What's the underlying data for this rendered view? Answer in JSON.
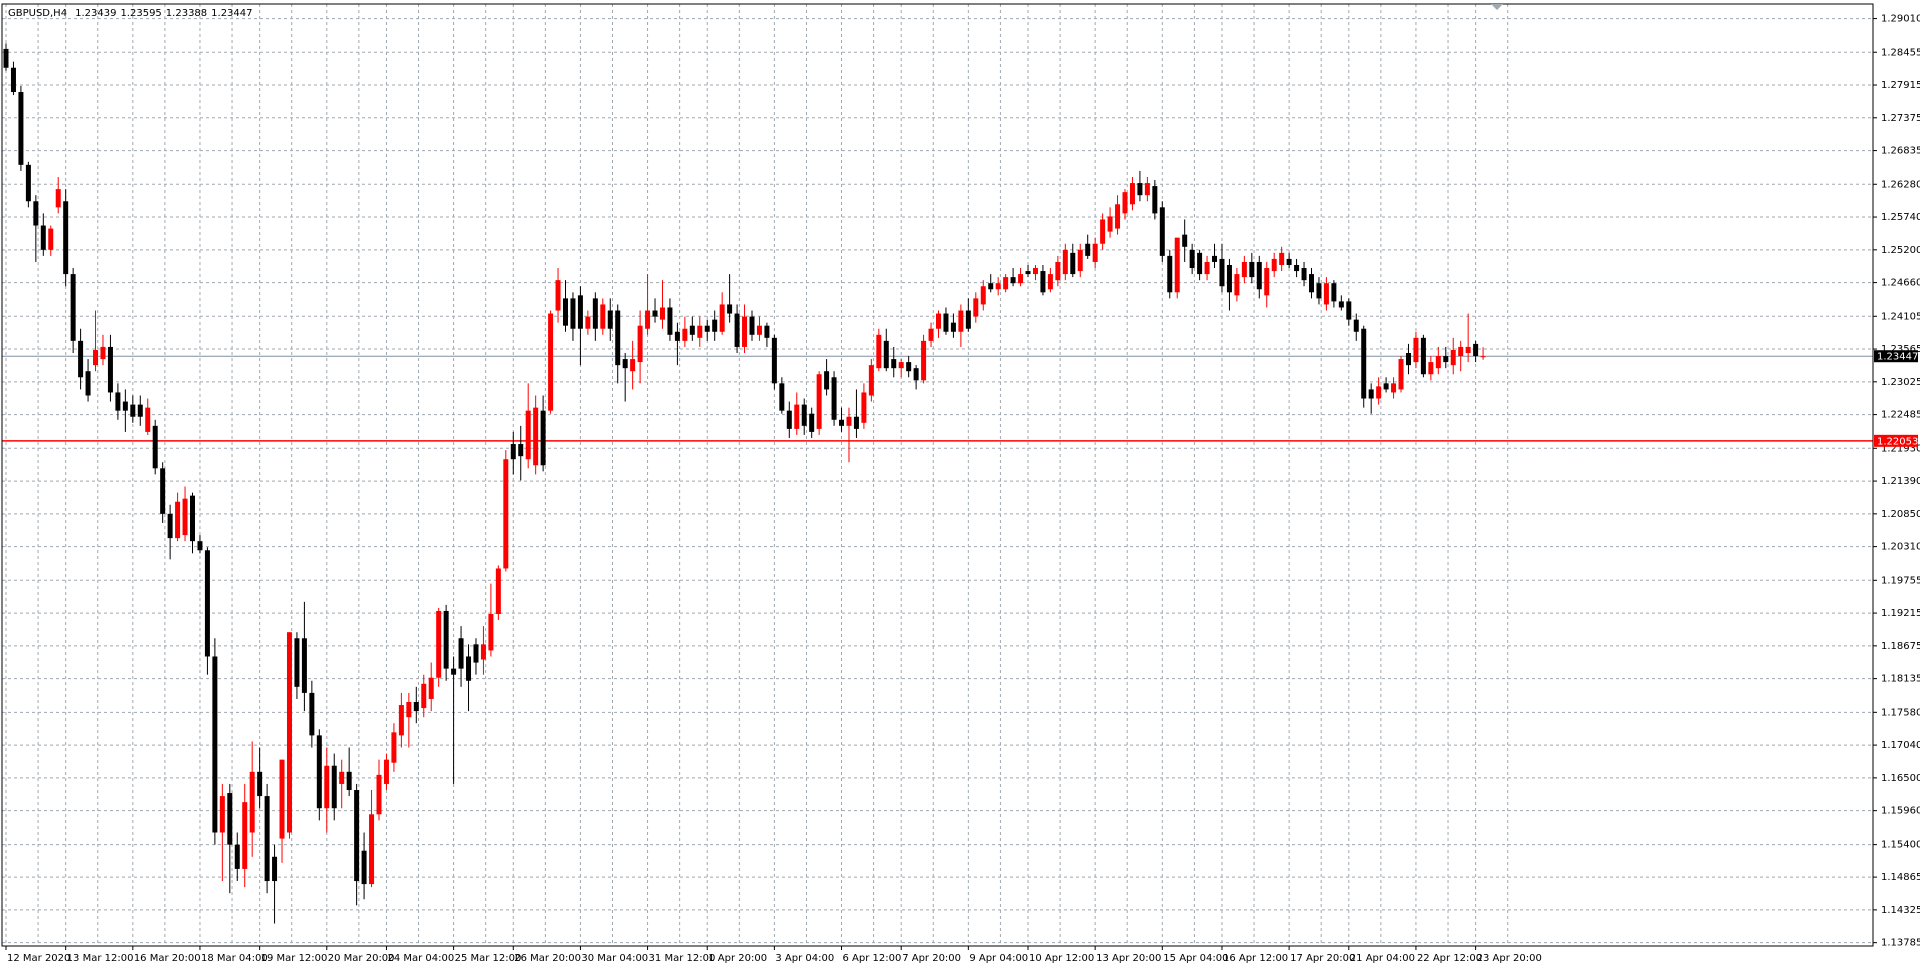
{
  "chart_data": {
    "type": "candlestick",
    "title": "GBPUSD,H4",
    "bull_color": "#ff0000",
    "bear_color": "#000000",
    "grid": true,
    "grid_color": "#a0a8b0",
    "ylim": [
      1.1373,
      1.2925
    ],
    "yticks": [
      {
        "value": 1.2901,
        "label": "1.29010"
      },
      1.28455,
      1.27915,
      1.27375,
      1.26835,
      {
        "value": 1.2628,
        "label": "1.26280"
      },
      {
        "value": 1.2574,
        "label": "1.25740"
      },
      {
        "value": 1.252,
        "label": "1.25200"
      },
      {
        "value": 1.2466,
        "label": "1.24660"
      },
      1.24105,
      1.23565,
      1.23025,
      1.22485,
      {
        "value": 1.2193,
        "label": "1.21930"
      },
      {
        "value": 1.2139,
        "label": "1.21390"
      },
      {
        "value": 1.2085,
        "label": "1.20850"
      },
      {
        "value": 1.2031,
        "label": "1.20310"
      },
      1.19755,
      1.19215,
      1.18675,
      1.18135,
      {
        "value": 1.1758,
        "label": "1.17580"
      },
      {
        "value": 1.1704,
        "label": "1.17040"
      },
      {
        "value": 1.165,
        "label": "1.16500"
      },
      {
        "value": 1.1596,
        "label": "1.15960"
      },
      {
        "value": 1.154,
        "label": "1.15400"
      },
      1.14865,
      1.14325,
      1.13785
    ],
    "hline": {
      "value": 1.22053,
      "color": "#ff0000"
    },
    "categories": [
      "12 Mar 2020",
      null,
      null,
      null,
      null,
      null,
      null,
      null,
      "13 Mar 12:00",
      null,
      null,
      null,
      null,
      null,
      null,
      null,
      null,
      "16 Mar 20:00",
      null,
      null,
      null,
      null,
      null,
      null,
      null,
      null,
      "18 Mar 04:00",
      null,
      null,
      null,
      null,
      null,
      null,
      null,
      "19 Mar 12:00",
      null,
      null,
      null,
      null,
      null,
      null,
      null,
      null,
      "20 Mar 20:00",
      null,
      null,
      null,
      null,
      null,
      null,
      null,
      "24 Mar 04:00",
      null,
      null,
      null,
      null,
      null,
      null,
      null,
      null,
      "25 Mar 12:00",
      null,
      null,
      null,
      null,
      null,
      null,
      null,
      "26 Mar 20:00",
      null,
      null,
      null,
      null,
      null,
      null,
      null,
      null,
      "30 Mar 04:00",
      null,
      null,
      null,
      null,
      null,
      null,
      null,
      null,
      "31 Mar 12:00",
      null,
      null,
      null,
      null,
      null,
      null,
      null,
      "1 Apr 20:00",
      null,
      null,
      null,
      null,
      null,
      null,
      null,
      null,
      "3 Apr 04:00",
      null,
      null,
      null,
      null,
      null,
      null,
      null,
      null,
      "6 Apr 12:00",
      null,
      null,
      null,
      null,
      null,
      null,
      null,
      "7 Apr 20:00",
      null,
      null,
      null,
      null,
      null,
      null,
      null,
      null,
      "9 Apr 04:00",
      null,
      null,
      null,
      null,
      null,
      null,
      null,
      "10 Apr 12:00",
      null,
      null,
      null,
      null,
      null,
      null,
      null,
      null,
      "13 Apr 20:00",
      null,
      null,
      null,
      null,
      null,
      null,
      null,
      null,
      "15 Apr 04:00",
      null,
      null,
      null,
      null,
      null,
      null,
      null,
      "16 Apr 12:00",
      null,
      null,
      null,
      null,
      null,
      null,
      null,
      null,
      "17 Apr 20:00",
      null,
      null,
      null,
      null,
      null,
      null,
      null,
      "21 Apr 04:00",
      null,
      null,
      null,
      null,
      null,
      null,
      null,
      null,
      "22 Apr 12:00",
      null,
      null,
      null,
      null,
      null,
      null,
      null,
      "23 Apr 20:00",
      null
    ],
    "values": [
      [
        1.2851,
        1.286,
        1.2815,
        1.282
      ],
      [
        1.282,
        1.283,
        1.2775,
        1.278
      ],
      [
        1.278,
        1.279,
        1.265,
        1.266
      ],
      [
        1.266,
        1.2665,
        1.259,
        1.26
      ],
      [
        1.26,
        1.261,
        1.25,
        1.256
      ],
      [
        1.256,
        1.258,
        1.251,
        1.252
      ],
      [
        1.252,
        1.256,
        1.251,
        1.2555
      ],
      [
        1.259,
        1.264,
        1.258,
        1.262
      ],
      [
        1.26,
        1.262,
        1.246,
        1.248
      ],
      [
        1.248,
        1.249,
        1.235,
        1.237
      ],
      [
        1.237,
        1.239,
        1.229,
        1.231
      ],
      [
        1.232,
        1.234,
        1.227,
        1.228
      ],
      [
        1.233,
        1.242,
        1.232,
        1.2355
      ],
      [
        1.234,
        1.238,
        1.233,
        1.236
      ],
      [
        1.236,
        1.238,
        1.227,
        1.2285
      ],
      [
        1.2285,
        1.23,
        1.224,
        1.2255
      ],
      [
        1.227,
        1.229,
        1.222,
        1.2255
      ],
      [
        1.2265,
        1.228,
        1.2235,
        1.2245
      ],
      [
        1.2265,
        1.228,
        1.223,
        1.2245
      ],
      [
        1.222,
        1.2275,
        1.2215,
        1.226
      ],
      [
        1.223,
        1.224,
        1.215,
        1.216
      ],
      [
        1.216,
        1.217,
        1.207,
        1.2085
      ],
      [
        1.2085,
        1.21,
        1.201,
        1.2045
      ],
      [
        1.2045,
        1.212,
        1.204,
        1.2105
      ],
      [
        1.205,
        1.213,
        1.204,
        1.211
      ],
      [
        1.2115,
        1.212,
        1.202,
        1.204
      ],
      [
        1.204,
        1.205,
        1.202,
        1.2025
      ],
      [
        1.2025,
        1.203,
        1.182,
        1.185
      ],
      [
        1.185,
        1.188,
        1.154,
        1.156
      ],
      [
        1.156,
        1.164,
        1.148,
        1.162
      ],
      [
        1.1625,
        1.164,
        1.146,
        1.154
      ],
      [
        1.154,
        1.156,
        1.148,
        1.15
      ],
      [
        1.15,
        1.164,
        1.147,
        1.161
      ],
      [
        1.156,
        1.171,
        1.152,
        1.166
      ],
      [
        1.166,
        1.17,
        1.16,
        1.162
      ],
      [
        1.162,
        1.164,
        1.146,
        1.148
      ],
      [
        1.152,
        1.154,
        1.141,
        1.148
      ],
      [
        1.155,
        1.168,
        1.151,
        1.168
      ],
      [
        1.156,
        1.189,
        1.155,
        1.189
      ],
      [
        1.188,
        1.189,
        1.178,
        1.18
      ],
      [
        1.188,
        1.194,
        1.176,
        1.179
      ],
      [
        1.179,
        1.181,
        1.17,
        1.172
      ],
      [
        1.172,
        1.173,
        1.158,
        1.16
      ],
      [
        1.16,
        1.17,
        1.156,
        1.167
      ],
      [
        1.167,
        1.169,
        1.158,
        1.16
      ],
      [
        1.164,
        1.168,
        1.16,
        1.166
      ],
      [
        1.166,
        1.17,
        1.162,
        1.163
      ],
      [
        1.163,
        1.164,
        1.144,
        1.148
      ],
      [
        1.153,
        1.156,
        1.145,
        1.1475
      ],
      [
        1.1475,
        1.163,
        1.147,
        1.159
      ],
      [
        1.159,
        1.168,
        1.158,
        1.1655
      ],
      [
        1.164,
        1.169,
        1.163,
        1.168
      ],
      [
        1.1675,
        1.174,
        1.166,
        1.1725
      ],
      [
        1.172,
        1.179,
        1.17,
        1.177
      ],
      [
        1.175,
        1.179,
        1.17,
        1.1775
      ],
      [
        1.1775,
        1.18,
        1.174,
        1.176
      ],
      [
        1.1765,
        1.182,
        1.175,
        1.1805
      ],
      [
        1.178,
        1.184,
        1.176,
        1.1815
      ],
      [
        1.1815,
        1.193,
        1.18,
        1.1925
      ],
      [
        1.1925,
        1.1935,
        1.181,
        1.183
      ],
      [
        1.183,
        1.185,
        1.164,
        1.182
      ],
      [
        1.188,
        1.19,
        1.18,
        1.183
      ],
      [
        1.185,
        1.187,
        1.176,
        1.181
      ],
      [
        1.187,
        1.188,
        1.182,
        1.184
      ],
      [
        1.1845,
        1.19,
        1.182,
        1.187
      ],
      [
        1.186,
        1.197,
        1.185,
        1.192
      ],
      [
        1.192,
        1.2,
        1.191,
        1.1995
      ],
      [
        1.1995,
        1.219,
        1.199,
        1.2175
      ],
      [
        1.22,
        1.222,
        1.215,
        1.2175
      ],
      [
        1.22,
        1.223,
        1.214,
        1.218
      ],
      [
        1.2175,
        1.23,
        1.216,
        1.2255
      ],
      [
        1.2165,
        1.228,
        1.215,
        1.226
      ],
      [
        1.2255,
        1.228,
        1.2155,
        1.2165
      ],
      [
        1.2255,
        1.242,
        1.225,
        1.2415
      ],
      [
        1.242,
        1.249,
        1.24,
        1.247
      ],
      [
        1.244,
        1.247,
        1.2385,
        1.2395
      ],
      [
        1.244,
        1.245,
        1.237,
        1.239
      ],
      [
        1.2445,
        1.246,
        1.233,
        1.239
      ],
      [
        1.239,
        1.242,
        1.238,
        1.241
      ],
      [
        1.244,
        1.245,
        1.237,
        1.239
      ],
      [
        1.239,
        1.244,
        1.238,
        1.243
      ],
      [
        1.242,
        1.244,
        1.237,
        1.239
      ],
      [
        1.242,
        1.243,
        1.23,
        1.233
      ],
      [
        1.234,
        1.235,
        1.227,
        1.2325
      ],
      [
        1.232,
        1.237,
        1.229,
        1.234
      ],
      [
        1.2335,
        1.242,
        1.23,
        1.2395
      ],
      [
        1.239,
        1.248,
        1.238,
        1.242
      ],
      [
        1.242,
        1.244,
        1.24,
        1.241
      ],
      [
        1.2405,
        1.247,
        1.239,
        1.2425
      ],
      [
        1.2425,
        1.244,
        1.237,
        1.238
      ],
      [
        1.2385,
        1.24,
        1.233,
        1.237
      ],
      [
        1.237,
        1.241,
        1.236,
        1.239
      ],
      [
        1.2395,
        1.241,
        1.237,
        1.238
      ],
      [
        1.2375,
        1.241,
        1.236,
        1.2395
      ],
      [
        1.2395,
        1.2405,
        1.237,
        1.2385
      ],
      [
        1.2405,
        1.242,
        1.237,
        1.2385
      ],
      [
        1.2385,
        1.245,
        1.238,
        1.243
      ],
      [
        1.243,
        1.248,
        1.24,
        1.2415
      ],
      [
        1.2415,
        1.243,
        1.235,
        1.236
      ],
      [
        1.236,
        1.243,
        1.235,
        1.241
      ],
      [
        1.241,
        1.242,
        1.237,
        1.238
      ],
      [
        1.238,
        1.241,
        1.237,
        1.2395
      ],
      [
        1.2395,
        1.24,
        1.236,
        1.2375
      ],
      [
        1.2375,
        1.238,
        1.229,
        1.23
      ],
      [
        1.23,
        1.231,
        1.225,
        1.2255
      ],
      [
        1.2255,
        1.227,
        1.221,
        1.2225
      ],
      [
        1.2225,
        1.2285,
        1.2215,
        1.2265
      ],
      [
        1.2265,
        1.2275,
        1.2215,
        1.223
      ],
      [
        1.225,
        1.226,
        1.221,
        1.222
      ],
      [
        1.2225,
        1.232,
        1.2215,
        1.2315
      ],
      [
        1.232,
        1.234,
        1.228,
        1.229
      ],
      [
        1.231,
        1.232,
        1.223,
        1.224
      ],
      [
        1.224,
        1.226,
        1.222,
        1.223
      ],
      [
        1.223,
        1.226,
        1.217,
        1.2245
      ],
      [
        1.2245,
        1.229,
        1.221,
        1.2225
      ],
      [
        1.2235,
        1.23,
        1.2225,
        1.2285
      ],
      [
        1.228,
        1.234,
        1.227,
        1.233
      ],
      [
        1.2325,
        1.239,
        1.232,
        1.238
      ],
      [
        1.237,
        1.239,
        1.232,
        1.2325
      ],
      [
        1.234,
        1.236,
        1.231,
        1.2325
      ],
      [
        1.2325,
        1.234,
        1.231,
        1.2335
      ],
      [
        1.2335,
        1.2345,
        1.231,
        1.232
      ],
      [
        1.2325,
        1.233,
        1.229,
        1.2305
      ],
      [
        1.2305,
        1.238,
        1.23,
        1.237
      ],
      [
        1.237,
        1.24,
        1.236,
        1.239
      ],
      [
        1.239,
        1.242,
        1.2375,
        1.2415
      ],
      [
        1.2415,
        1.2425,
        1.238,
        1.2385
      ],
      [
        1.24,
        1.2415,
        1.2375,
        1.2385
      ],
      [
        1.2385,
        1.243,
        1.236,
        1.242
      ],
      [
        1.242,
        1.244,
        1.2385,
        1.239
      ],
      [
        1.241,
        1.245,
        1.24,
        1.244
      ],
      [
        1.243,
        1.247,
        1.242,
        1.246
      ],
      [
        1.2465,
        1.248,
        1.245,
        1.2455
      ],
      [
        1.2455,
        1.2475,
        1.2445,
        1.2465
      ],
      [
        1.2455,
        1.248,
        1.245,
        1.2475
      ],
      [
        1.2475,
        1.249,
        1.246,
        1.2465
      ],
      [
        1.2465,
        1.249,
        1.246,
        1.248
      ],
      [
        1.2485,
        1.2495,
        1.2475,
        1.248
      ],
      [
        1.248,
        1.2495,
        1.247,
        1.249
      ],
      [
        1.2485,
        1.2495,
        1.2445,
        1.245
      ],
      [
        1.2455,
        1.249,
        1.245,
        1.248
      ],
      [
        1.247,
        1.251,
        1.246,
        1.25
      ],
      [
        1.248,
        1.253,
        1.247,
        1.252
      ],
      [
        1.2515,
        1.253,
        1.2475,
        1.248
      ],
      [
        1.2485,
        1.253,
        1.2475,
        1.252
      ],
      [
        1.253,
        1.2545,
        1.2505,
        1.251
      ],
      [
        1.25,
        1.254,
        1.249,
        1.253
      ],
      [
        1.253,
        1.258,
        1.252,
        1.257
      ],
      [
        1.255,
        1.259,
        1.254,
        1.2575
      ],
      [
        1.2555,
        1.261,
        1.2545,
        1.2595
      ],
      [
        1.258,
        1.262,
        1.257,
        1.2615
      ],
      [
        1.2595,
        1.264,
        1.2585,
        1.263
      ],
      [
        1.263,
        1.265,
        1.26,
        1.261
      ],
      [
        1.261,
        1.264,
        1.26,
        1.263
      ],
      [
        1.2625,
        1.2635,
        1.257,
        1.258
      ],
      [
        1.259,
        1.26,
        1.25,
        1.251
      ],
      [
        1.251,
        1.252,
        1.244,
        1.245
      ],
      [
        1.245,
        1.254,
        1.244,
        1.254
      ],
      [
        1.2545,
        1.257,
        1.25,
        1.2525
      ],
      [
        1.252,
        1.253,
        1.248,
        1.249
      ],
      [
        1.2515,
        1.252,
        1.247,
        1.248
      ],
      [
        1.248,
        1.251,
        1.247,
        1.25
      ],
      [
        1.251,
        1.253,
        1.249,
        1.25
      ],
      [
        1.2505,
        1.253,
        1.245,
        1.246
      ],
      [
        1.2495,
        1.2505,
        1.242,
        1.245
      ],
      [
        1.2445,
        1.249,
        1.2435,
        1.248
      ],
      [
        1.2475,
        1.251,
        1.2465,
        1.25
      ],
      [
        1.25,
        1.2515,
        1.2465,
        1.2475
      ],
      [
        1.25,
        1.251,
        1.244,
        1.2455
      ],
      [
        1.2445,
        1.25,
        1.2425,
        1.249
      ],
      [
        1.2485,
        1.2515,
        1.2475,
        1.2505
      ],
      [
        1.2495,
        1.2525,
        1.2485,
        1.2515
      ],
      [
        1.2505,
        1.2515,
        1.249,
        1.2495
      ],
      [
        1.2495,
        1.2505,
        1.2475,
        1.2485
      ],
      [
        1.249,
        1.25,
        1.246,
        1.247
      ],
      [
        1.248,
        1.249,
        1.244,
        1.245
      ],
      [
        1.2465,
        1.2475,
        1.243,
        1.244
      ],
      [
        1.243,
        1.2475,
        1.242,
        1.2465
      ],
      [
        1.2465,
        1.247,
        1.2425,
        1.2435
      ],
      [
        1.2435,
        1.2445,
        1.242,
        1.2425
      ],
      [
        1.2435,
        1.244,
        1.2395,
        1.2405
      ],
      [
        1.2405,
        1.2415,
        1.237,
        1.2385
      ],
      [
        1.239,
        1.2395,
        1.226,
        1.2275
      ],
      [
        1.229,
        1.23,
        1.225,
        1.2275
      ],
      [
        1.2275,
        1.231,
        1.2265,
        1.2295
      ],
      [
        1.23,
        1.231,
        1.2285,
        1.229
      ],
      [
        1.2285,
        1.231,
        1.2275,
        1.23
      ],
      [
        1.229,
        1.2345,
        1.2285,
        1.234
      ],
      [
        1.235,
        1.2365,
        1.2315,
        1.233
      ],
      [
        1.2335,
        1.2385,
        1.2325,
        1.2375
      ],
      [
        1.2375,
        1.238,
        1.231,
        1.2315
      ],
      [
        1.2315,
        1.2345,
        1.2305,
        1.2335
      ],
      [
        1.2325,
        1.236,
        1.2315,
        1.2345
      ],
      [
        1.2345,
        1.236,
        1.2325,
        1.2335
      ],
      [
        1.233,
        1.2375,
        1.2315,
        1.2355
      ],
      [
        1.2345,
        1.237,
        1.232,
        1.236
      ],
      [
        1.235,
        1.2415,
        1.2335,
        1.236
      ],
      [
        1.2365,
        1.237,
        1.2335,
        1.2345
      ],
      [
        1.23439,
        1.23595,
        1.23388,
        1.23447
      ]
    ]
  }
}
